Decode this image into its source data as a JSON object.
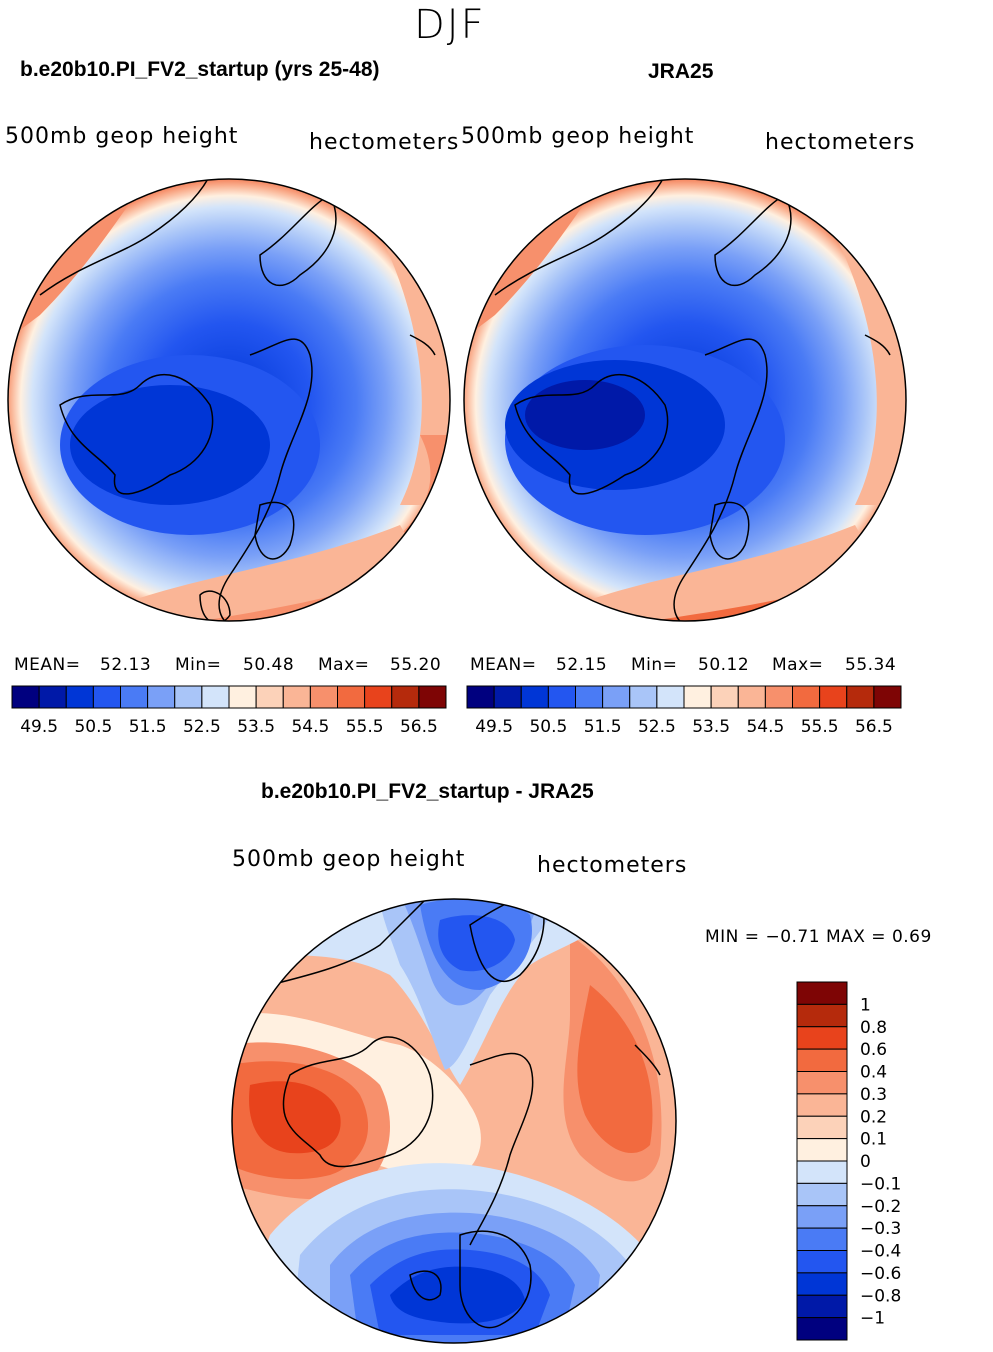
{
  "season": "DJF",
  "panels": [
    {
      "title": "b.e20b10.PI_FV2_startup (yrs 25-48)",
      "left_label": "500mb  geop  height",
      "right_label": "hectometers",
      "stats": {
        "mean_label": "MEAN=",
        "mean": "52.13",
        "min_label": "Min=",
        "min": "50.48",
        "max_label": "Max=",
        "max": "55.20"
      }
    },
    {
      "title": "JRA25",
      "left_label": "500mb  geop  height",
      "right_label": "hectometers",
      "stats": {
        "mean_label": "MEAN=",
        "mean": "52.15",
        "min_label": "Min=",
        "min": "50.12",
        "max_label": "Max=",
        "max": "55.34"
      }
    },
    {
      "title": "b.e20b10.PI_FV2_startup - JRA25",
      "left_label": "500mb  geop  height",
      "right_label": "hectometers",
      "stats_line": "MIN =   −0.71  MAX =     0.69"
    }
  ],
  "abs_colorbar": {
    "colors": [
      "#00007f",
      "#0019a8",
      "#0036d6",
      "#2356f0",
      "#4a7bf5",
      "#7aa0f7",
      "#a9c5f8",
      "#d3e4fa",
      "#fff0e0",
      "#fcd2b9",
      "#fab596",
      "#f7906c",
      "#f26a3f",
      "#e8431c",
      "#b52a0c",
      "#7e0505"
    ],
    "labels": [
      "49.5",
      "50.5",
      "51.5",
      "52.5",
      "53.5",
      "54.5",
      "55.5",
      "56.5"
    ]
  },
  "diff_colorbar": {
    "colors": [
      "#7e0505",
      "#b52a0c",
      "#e8431c",
      "#f26a3f",
      "#f7906c",
      "#fab596",
      "#fcd2b9",
      "#fff0e0",
      "#d3e4fa",
      "#a9c5f8",
      "#7aa0f7",
      "#4a7bf5",
      "#2356f0",
      "#0036d6",
      "#0019a8",
      "#00007f"
    ],
    "labels": [
      "1",
      "0.8",
      "0.6",
      "0.4",
      "0.3",
      "0.2",
      "0.1",
      "0",
      "−0.1",
      "−0.2",
      "−0.3",
      "−0.4",
      "−0.6",
      "−0.8",
      "−1"
    ]
  },
  "chart_data": [
    {
      "type": "heatmap",
      "title": "b.e20b10.PI_FV2_startup (yrs 25-48)",
      "variable": "500mb geop height",
      "units": "hectometers",
      "projection": "polar stereographic (north pole)",
      "mean": 52.13,
      "min": 50.48,
      "max": 55.2,
      "contour_levels": [
        49.5,
        50.0,
        50.5,
        51.0,
        51.5,
        52.0,
        52.5,
        53.0,
        53.5,
        54.0,
        54.5,
        55.0,
        55.5,
        56.0,
        56.5
      ]
    },
    {
      "type": "heatmap",
      "title": "JRA25",
      "variable": "500mb geop height",
      "units": "hectometers",
      "projection": "polar stereographic (north pole)",
      "mean": 52.15,
      "min": 50.12,
      "max": 55.34,
      "contour_levels": [
        49.5,
        50.0,
        50.5,
        51.0,
        51.5,
        52.0,
        52.5,
        53.0,
        53.5,
        54.0,
        54.5,
        55.0,
        55.5,
        56.0,
        56.5
      ]
    },
    {
      "type": "heatmap",
      "title": "b.e20b10.PI_FV2_startup - JRA25",
      "variable": "500mb geop height",
      "units": "hectometers",
      "projection": "polar stereographic (north pole)",
      "min": -0.71,
      "max": 0.69,
      "contour_levels": [
        -1,
        -0.8,
        -0.6,
        -0.4,
        -0.3,
        -0.2,
        -0.1,
        0,
        0.1,
        0.2,
        0.3,
        0.4,
        0.6,
        0.8,
        1
      ]
    }
  ]
}
